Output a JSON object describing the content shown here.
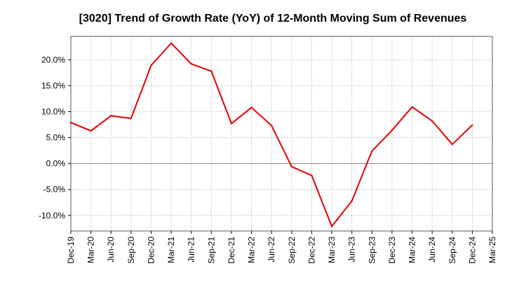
{
  "chart_data": {
    "type": "line",
    "title": "[3020]  Trend of Growth Rate (YoY) of 12-Month Moving Sum of Revenues",
    "xlabel": "",
    "ylabel": "",
    "ylim": [
      -13,
      24.5
    ],
    "yticks": [
      -10,
      -5,
      0,
      5,
      10,
      15,
      20
    ],
    "ytick_labels": [
      "-10.0%",
      "-5.0%",
      "0.0%",
      "5.0%",
      "10.0%",
      "15.0%",
      "20.0%"
    ],
    "categories": [
      "Dec-19",
      "Mar-20",
      "Jun-20",
      "Sep-20",
      "Dec-20",
      "Mar-21",
      "Jun-21",
      "Sep-21",
      "Dec-21",
      "Mar-22",
      "Jun-22",
      "Sep-22",
      "Dec-22",
      "Mar-23",
      "Jun-23",
      "Sep-23",
      "Dec-23",
      "Mar-24",
      "Jun-24",
      "Sep-24",
      "Dec-24",
      "Mar-25"
    ],
    "grid": true,
    "line_color": "#e60000",
    "series": [
      {
        "values": [
          7.9,
          6.3,
          9.2,
          8.7,
          18.9,
          23.2,
          19.2,
          17.8,
          7.7,
          10.8,
          7.3,
          -0.6,
          -2.3,
          -12.1,
          -7.2,
          2.4,
          6.4,
          10.9,
          8.2,
          3.7,
          7.4,
          null
        ]
      }
    ]
  }
}
